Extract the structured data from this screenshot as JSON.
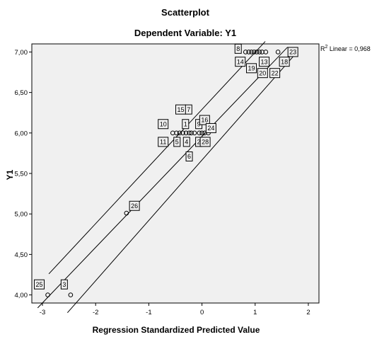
{
  "chart_data": {
    "type": "scatter",
    "title": "Scatterplot",
    "subtitle": "Dependent Variable: Y1",
    "xlabel": "Regression Standardized Predicted Value",
    "ylabel": "Y1",
    "xlim": [
      -3.2,
      2.2
    ],
    "ylim": [
      3.9,
      7.1
    ],
    "x_ticks": [
      -3,
      -2,
      -1,
      0,
      1,
      2
    ],
    "y_ticks": [
      4.0,
      4.5,
      5.0,
      5.5,
      6.0,
      6.5,
      7.0
    ],
    "x_tick_labels": [
      "-3",
      "-2",
      "-1",
      "0",
      "1",
      "2"
    ],
    "y_tick_labels": [
      "4,00",
      "4,50",
      "5,00",
      "5,50",
      "6,00",
      "6,50",
      "7,00"
    ],
    "fit_annotation": {
      "label": "R² Linear = 0,968",
      "prefix": "R",
      "sup": "2",
      "rest": " Linear = 0,968"
    },
    "fit_line": {
      "x": [
        -3.09,
        1.61
      ],
      "y": [
        3.84,
        7.06
      ]
    },
    "ci_lines": [
      {
        "x": [
          -2.88,
          1.19
        ],
        "y": [
          4.26,
          7.13
        ]
      },
      {
        "x": [
          -2.53,
          1.79
        ],
        "y": [
          3.78,
          7.0
        ]
      }
    ],
    "points": [
      {
        "x": -2.9,
        "y": 4.0
      },
      {
        "x": -2.47,
        "y": 4.0
      },
      {
        "x": -1.42,
        "y": 5.01
      },
      {
        "x": -0.55,
        "y": 6.0
      },
      {
        "x": -0.48,
        "y": 6.0
      },
      {
        "x": -0.42,
        "y": 6.0
      },
      {
        "x": -0.36,
        "y": 6.0
      },
      {
        "x": -0.3,
        "y": 6.0
      },
      {
        "x": -0.24,
        "y": 6.0
      },
      {
        "x": -0.2,
        "y": 6.0
      },
      {
        "x": -0.14,
        "y": 6.0
      },
      {
        "x": -0.05,
        "y": 6.0
      },
      {
        "x": 0.0,
        "y": 6.0
      },
      {
        "x": 0.05,
        "y": 6.0
      },
      {
        "x": 0.12,
        "y": 6.0
      },
      {
        "x": 0.82,
        "y": 7.0
      },
      {
        "x": 0.88,
        "y": 7.0
      },
      {
        "x": 0.93,
        "y": 7.0
      },
      {
        "x": 0.98,
        "y": 7.0
      },
      {
        "x": 1.03,
        "y": 7.0
      },
      {
        "x": 1.08,
        "y": 7.0
      },
      {
        "x": 1.13,
        "y": 7.0
      },
      {
        "x": 1.2,
        "y": 7.0
      },
      {
        "x": 1.43,
        "y": 7.0
      }
    ],
    "point_labels": [
      {
        "text": "25",
        "x": -3.06,
        "y": 4.13
      },
      {
        "text": "3",
        "x": -2.59,
        "y": 4.13
      },
      {
        "text": "26",
        "x": -1.27,
        "y": 5.1
      },
      {
        "text": "10",
        "x": -0.73,
        "y": 6.11
      },
      {
        "text": "11",
        "x": -0.73,
        "y": 5.89
      },
      {
        "text": "15",
        "x": -0.4,
        "y": 6.29
      },
      {
        "text": "7",
        "x": -0.25,
        "y": 6.29
      },
      {
        "text": "1",
        "x": -0.31,
        "y": 6.11
      },
      {
        "text": "5",
        "x": -0.47,
        "y": 5.89
      },
      {
        "text": "4",
        "x": -0.29,
        "y": 5.89
      },
      {
        "text": "9",
        "x": -0.06,
        "y": 6.11
      },
      {
        "text": "16",
        "x": 0.05,
        "y": 6.16
      },
      {
        "text": "24",
        "x": 0.17,
        "y": 6.06
      },
      {
        "text": "2",
        "x": -0.06,
        "y": 5.89
      },
      {
        "text": "28",
        "x": 0.06,
        "y": 5.89
      },
      {
        "text": "6",
        "x": -0.24,
        "y": 5.71
      },
      {
        "text": "8",
        "x": 0.68,
        "y": 7.04
      },
      {
        "text": "23",
        "x": 1.71,
        "y": 7.0
      },
      {
        "text": "14",
        "x": 0.72,
        "y": 6.88
      },
      {
        "text": "13",
        "x": 1.17,
        "y": 6.88
      },
      {
        "text": "18",
        "x": 1.55,
        "y": 6.88
      },
      {
        "text": "19",
        "x": 0.93,
        "y": 6.8
      },
      {
        "text": "20",
        "x": 1.14,
        "y": 6.74
      },
      {
        "text": "22",
        "x": 1.37,
        "y": 6.74
      }
    ],
    "grid": false,
    "background": "#f0f0f0",
    "marker_style": "open-circle",
    "line_color": "#000000"
  }
}
